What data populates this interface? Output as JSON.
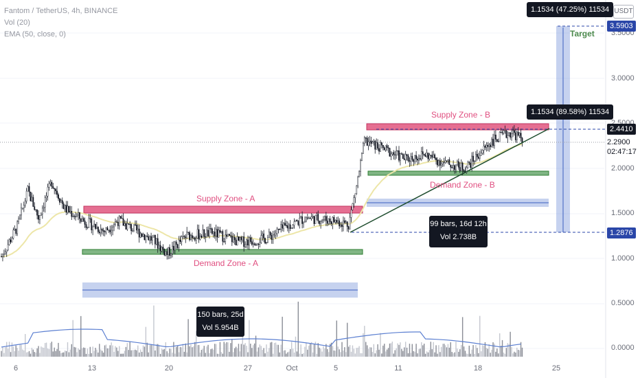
{
  "legend": {
    "symbol": "Fantom / TetherUS, 4h, BINANCE",
    "vol": "Vol (20)",
    "ema": "EMA (50, close, 0)"
  },
  "unit_button": "USDT",
  "price_axis": [
    "3.5000",
    "3.0000",
    "2.5000",
    "2.0000",
    "1.5000",
    "1.0000",
    "0.5000",
    "0.0000"
  ],
  "time_axis": [
    "6",
    "13",
    "20",
    "27",
    "Oct",
    "5",
    "11",
    "18",
    "25"
  ],
  "price_tags": {
    "target": "3.5903",
    "supply_b": "2.4410",
    "support": "1.2876"
  },
  "current_price": {
    "value": "2.2900",
    "countdown": "02:47:17"
  },
  "measure_labels": {
    "top": "1.1534 (47.25%) 11534",
    "mid": "1.1534 (89.58%) 11534"
  },
  "zones": {
    "supply_a": "Supply Zone - A",
    "demand_a": "Demand Zone - A",
    "supply_b": "Supply Zone - B",
    "demand_b": "Demand Zone - B",
    "target": "Target"
  },
  "range_tooltips": {
    "a": {
      "bars": "150 bars, 25d",
      "vol": "Vol 5.954B"
    },
    "b": {
      "bars": "99 bars, 16d 12h",
      "vol": "Vol 2.738B"
    }
  },
  "colors": {
    "supply": "#e0567f",
    "demand": "#4caf50",
    "measure": "#5b7fd1",
    "ema": "#ede6a8",
    "candle": "#131722",
    "volume": "#b2b5be"
  }
}
